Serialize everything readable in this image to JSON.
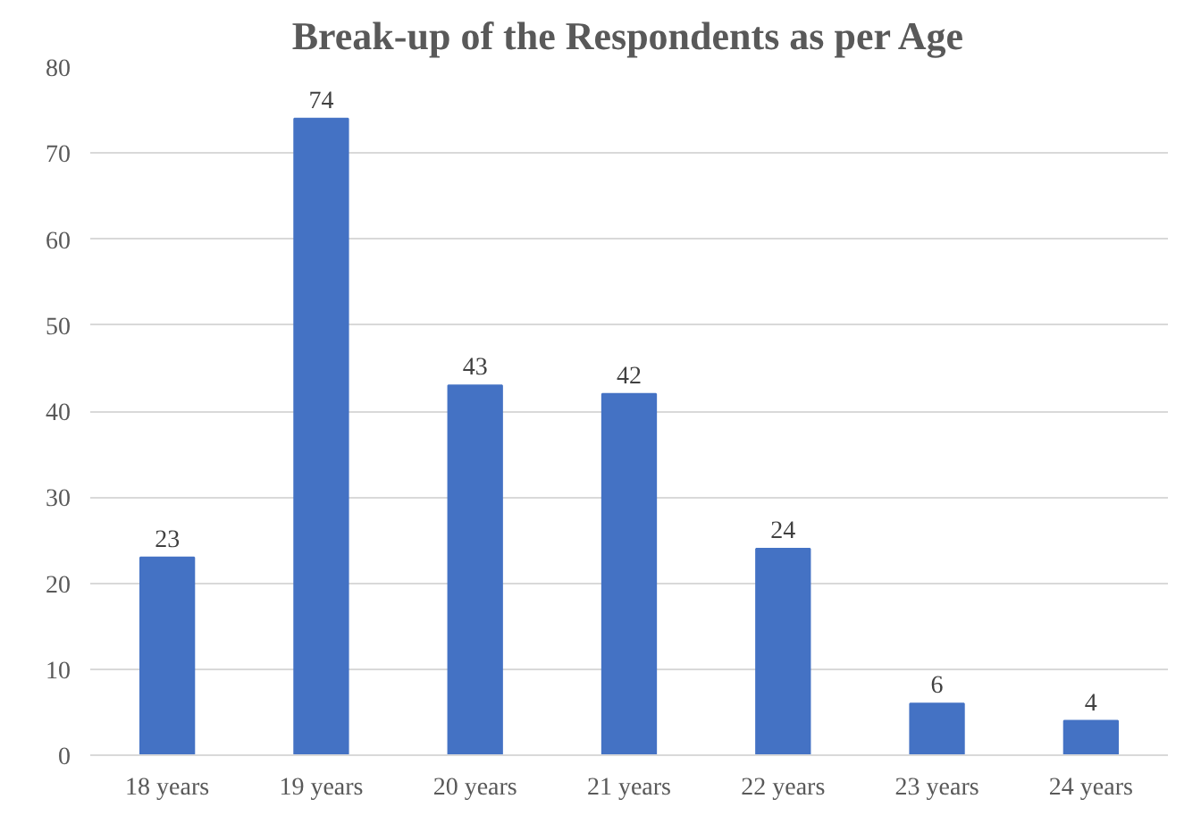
{
  "chart_data": {
    "type": "bar",
    "title": "Break-up of the Respondents as per Age",
    "categories": [
      "18 years",
      "19 years",
      "20 years",
      "21 years",
      "22 years",
      "23 years",
      "24 years"
    ],
    "values": [
      23,
      74,
      43,
      42,
      24,
      6,
      4
    ],
    "color": "#4472c4",
    "ylim": [
      0,
      80
    ],
    "yticks": [
      0,
      10,
      20,
      30,
      40,
      50,
      60,
      70,
      80
    ],
    "grid": "y",
    "data_labels": true
  }
}
